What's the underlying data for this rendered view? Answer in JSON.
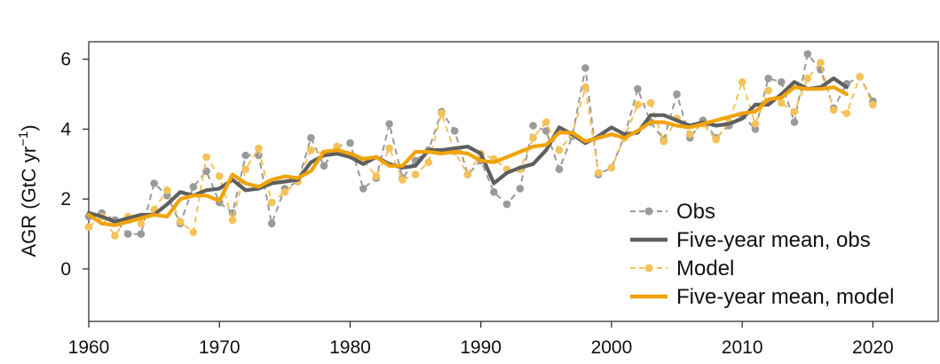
{
  "chart_data": {
    "type": "line",
    "ylabel": "AGR (GtC yr",
    "ylabel_superscript": "−1",
    "ylabel_suffix": ")",
    "xlim": [
      1960,
      2025
    ],
    "ylim": [
      -1.5,
      6.5
    ],
    "x_ticks": [
      1960,
      1970,
      1980,
      1990,
      2000,
      2010,
      2020
    ],
    "y_ticks": [
      0,
      2,
      4,
      6
    ],
    "legend_position": "bottom-right",
    "grid": false,
    "series": [
      {
        "name": "Obs",
        "style": "dashed-markers",
        "color": "#9a9a9a",
        "x": [
          1960,
          1961,
          1962,
          1963,
          1964,
          1965,
          1966,
          1967,
          1968,
          1969,
          1970,
          1971,
          1972,
          1973,
          1974,
          1975,
          1976,
          1977,
          1978,
          1979,
          1980,
          1981,
          1982,
          1983,
          1984,
          1985,
          1986,
          1987,
          1988,
          1989,
          1990,
          1991,
          1992,
          1993,
          1994,
          1995,
          1996,
          1997,
          1998,
          1999,
          2000,
          2001,
          2002,
          2003,
          2004,
          2005,
          2006,
          2007,
          2008,
          2009,
          2010,
          2011,
          2012,
          2013,
          2014,
          2015,
          2016,
          2017,
          2018,
          2019,
          2020
        ],
        "values": [
          1.5,
          1.6,
          1.4,
          1.0,
          1.0,
          2.45,
          2.1,
          1.3,
          2.35,
          2.8,
          1.9,
          1.6,
          3.25,
          3.25,
          1.3,
          2.3,
          2.5,
          3.75,
          2.95,
          3.5,
          3.6,
          2.3,
          2.6,
          4.15,
          2.6,
          3.1,
          3.4,
          4.5,
          3.95,
          2.7,
          3.1,
          2.2,
          1.85,
          2.3,
          4.1,
          3.95,
          2.85,
          3.8,
          5.75,
          2.7,
          2.9,
          3.8,
          5.15,
          4.2,
          3.7,
          5.0,
          3.75,
          4.25,
          3.75,
          4.1,
          4.4,
          4.0,
          5.45,
          5.35,
          4.2,
          6.15,
          5.7,
          4.6,
          5.3,
          5.5,
          4.8
        ]
      },
      {
        "name": "Five-year mean, obs",
        "style": "solid-thick",
        "color": "#5f5f5f",
        "x": [
          1960,
          1961,
          1962,
          1963,
          1964,
          1965,
          1966,
          1967,
          1968,
          1969,
          1970,
          1971,
          1972,
          1973,
          1974,
          1975,
          1976,
          1977,
          1978,
          1979,
          1980,
          1981,
          1982,
          1983,
          1984,
          1985,
          1986,
          1987,
          1988,
          1989,
          1990,
          1991,
          1992,
          1993,
          1994,
          1995,
          1996,
          1997,
          1998,
          1999,
          2000,
          2001,
          2002,
          2003,
          2004,
          2005,
          2006,
          2007,
          2008,
          2009,
          2010,
          2011,
          2012,
          2013,
          2014,
          2015,
          2016,
          2017,
          2018
        ],
        "values": [
          1.6,
          1.5,
          1.35,
          1.45,
          1.55,
          1.55,
          1.85,
          2.2,
          2.1,
          2.25,
          2.3,
          2.55,
          2.25,
          2.3,
          2.45,
          2.5,
          2.55,
          3.05,
          3.25,
          3.3,
          3.2,
          3.0,
          3.2,
          3.0,
          2.9,
          2.95,
          3.4,
          3.4,
          3.45,
          3.5,
          3.3,
          2.45,
          2.75,
          2.9,
          3.0,
          3.4,
          4.05,
          3.85,
          3.6,
          3.8,
          4.05,
          3.85,
          3.9,
          4.4,
          4.4,
          4.25,
          4.1,
          4.2,
          4.1,
          4.15,
          4.3,
          4.7,
          4.7,
          5.0,
          5.35,
          5.15,
          5.2,
          5.45,
          5.2
        ]
      },
      {
        "name": "Model",
        "style": "dashed-markers",
        "color": "#f4c25a",
        "x": [
          1960,
          1961,
          1962,
          1963,
          1964,
          1965,
          1966,
          1967,
          1968,
          1969,
          1970,
          1971,
          1972,
          1973,
          1974,
          1975,
          1976,
          1977,
          1978,
          1979,
          1980,
          1981,
          1982,
          1983,
          1984,
          1985,
          1986,
          1987,
          1988,
          1989,
          1990,
          1991,
          1992,
          1993,
          1994,
          1995,
          1996,
          1997,
          1998,
          1999,
          2000,
          2001,
          2002,
          2003,
          2004,
          2005,
          2006,
          2007,
          2008,
          2009,
          2010,
          2011,
          2012,
          2013,
          2014,
          2015,
          2016,
          2017,
          2018,
          2019,
          2020
        ],
        "values": [
          1.2,
          1.5,
          0.95,
          1.5,
          1.3,
          1.7,
          2.25,
          1.35,
          1.05,
          3.2,
          2.65,
          1.4,
          2.85,
          3.45,
          1.9,
          2.2,
          2.5,
          3.4,
          3.3,
          3.5,
          3.25,
          3.1,
          2.65,
          3.45,
          2.55,
          2.7,
          3.05,
          4.45,
          3.35,
          2.7,
          3.3,
          3.15,
          2.85,
          2.85,
          3.75,
          4.2,
          3.4,
          3.85,
          5.2,
          2.75,
          2.9,
          3.75,
          4.7,
          4.75,
          3.65,
          4.3,
          3.85,
          4.15,
          3.7,
          4.2,
          5.35,
          4.15,
          5.1,
          4.75,
          4.5,
          5.45,
          5.9,
          4.55,
          4.45,
          5.5,
          4.7
        ]
      },
      {
        "name": "Five-year mean, model",
        "style": "solid-thick",
        "color": "#f0a30a",
        "x": [
          1960,
          1961,
          1962,
          1963,
          1964,
          1965,
          1966,
          1967,
          1968,
          1969,
          1970,
          1971,
          1972,
          1973,
          1974,
          1975,
          1976,
          1977,
          1978,
          1979,
          1980,
          1981,
          1982,
          1983,
          1984,
          1985,
          1986,
          1987,
          1988,
          1989,
          1990,
          1991,
          1992,
          1993,
          1994,
          1995,
          1996,
          1997,
          1998,
          1999,
          2000,
          2001,
          2002,
          2003,
          2004,
          2005,
          2006,
          2007,
          2008,
          2009,
          2010,
          2011,
          2012,
          2013,
          2014,
          2015,
          2016,
          2017,
          2018
        ],
        "values": [
          1.55,
          1.3,
          1.25,
          1.35,
          1.45,
          1.55,
          1.5,
          2.0,
          2.1,
          2.1,
          1.95,
          2.7,
          2.45,
          2.35,
          2.55,
          2.65,
          2.6,
          2.8,
          3.35,
          3.4,
          3.3,
          3.15,
          3.2,
          2.95,
          2.95,
          3.35,
          3.35,
          3.3,
          3.35,
          3.3,
          3.1,
          3.05,
          3.2,
          3.35,
          3.5,
          3.55,
          3.9,
          3.9,
          3.65,
          3.75,
          3.85,
          3.75,
          3.95,
          4.2,
          4.2,
          4.1,
          4.05,
          4.15,
          4.25,
          4.35,
          4.45,
          4.5,
          4.85,
          4.9,
          5.2,
          5.15,
          5.15,
          5.2,
          5.0
        ]
      }
    ]
  }
}
